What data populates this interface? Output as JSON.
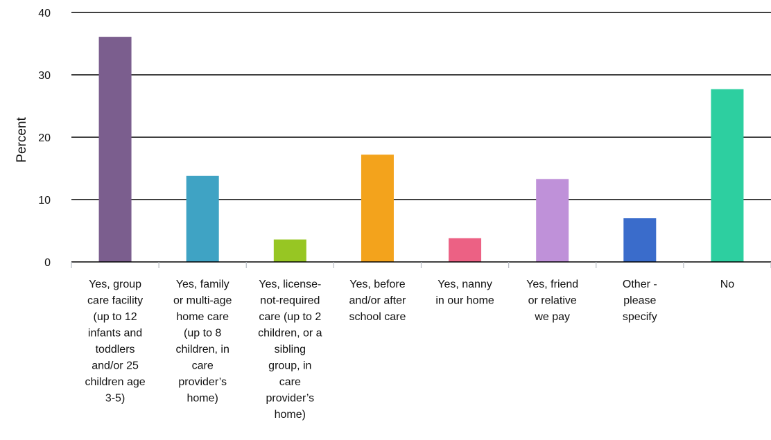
{
  "chart_data": {
    "type": "bar",
    "ylabel": "Percent",
    "xlabel": "",
    "title": "",
    "ylim": [
      0,
      40
    ],
    "yticks": [
      0,
      10,
      20,
      30,
      40
    ],
    "grid": true,
    "categories": [
      [
        "Yes, group",
        "care facility",
        "(up to 12",
        "infants and",
        "toddlers",
        "and/or 25",
        "children age",
        "3-5)"
      ],
      [
        "Yes, family",
        "or multi-age",
        "home care",
        "(up to 8",
        "children, in",
        "care",
        "provider’s",
        "home)"
      ],
      [
        "Yes, license-",
        "not-required",
        "care (up to 2",
        "children, or a",
        "sibling",
        "group, in",
        "care",
        "provider’s",
        "home)"
      ],
      [
        "Yes, before",
        "and/or after",
        "school care"
      ],
      [
        "Yes, nanny",
        "in our home"
      ],
      [
        "Yes, friend",
        "or relative",
        "we pay"
      ],
      [
        "Other -",
        "please",
        "specify"
      ],
      [
        "No"
      ]
    ],
    "values": [
      36.1,
      13.8,
      3.6,
      17.2,
      3.8,
      13.3,
      7.0,
      27.7
    ],
    "colors": [
      "#7b5e8e",
      "#3fa3c4",
      "#97c623",
      "#f3a31c",
      "#ec6184",
      "#bf91d9",
      "#3a6ccb",
      "#2dcfa0"
    ]
  }
}
